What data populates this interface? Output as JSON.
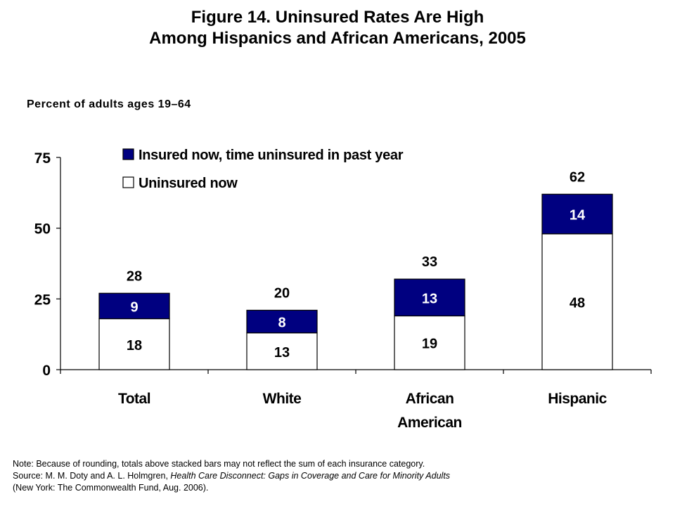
{
  "title": {
    "line1": "Figure 14. Uninsured Rates Are High",
    "line2": "Among Hispanics and African Americans, 2005"
  },
  "chart_data": {
    "type": "bar",
    "stacked": true,
    "ylabel": "Percent of adults ages 19–64",
    "ylim": [
      0,
      75
    ],
    "yticks": [
      "0",
      "25",
      "50",
      "75"
    ],
    "ytick_values": [
      0,
      25,
      50,
      75
    ],
    "grid": false,
    "legend_position": "top",
    "categories": [
      {
        "lines": [
          "Total"
        ]
      },
      {
        "lines": [
          "White"
        ]
      },
      {
        "lines": [
          "African",
          "American"
        ]
      },
      {
        "lines": [
          "Hispanic"
        ]
      }
    ],
    "series": [
      {
        "name": "Uninsured now",
        "color": "#ffffff",
        "values": [
          18,
          13,
          19,
          48
        ],
        "labels": [
          "18",
          "13",
          "19",
          "48"
        ]
      },
      {
        "name": "Insured now, time uninsured in past year",
        "color": "#000080",
        "values": [
          9,
          8,
          13,
          14
        ],
        "labels": [
          "9",
          "8",
          "13",
          "14"
        ]
      }
    ],
    "totals": [
      "28",
      "20",
      "33",
      "62"
    ],
    "total_values": [
      28,
      20,
      33,
      62
    ],
    "legend": [
      {
        "name": "Insured now, time uninsured in past year",
        "color": "#000080"
      },
      {
        "name": "Uninsured now",
        "color": "#ffffff"
      }
    ]
  },
  "notes": {
    "line1": "Note: Because of rounding, totals above stacked bars may not reflect the sum of each insurance category.",
    "line2_prefix": "Source: M. M. Doty and A. L. Holmgren, ",
    "line2_italic": "Health Care Disconnect: Gaps in Coverage and Care for Minority Adults",
    "line3": "(New York: The Commonwealth Fund, Aug. 2006)."
  }
}
